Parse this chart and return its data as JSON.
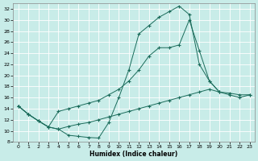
{
  "xlabel": "Humidex (Indice chaleur)",
  "bg_color": "#c8ece8",
  "grid_color": "#ffffff",
  "line_color": "#1a6b5a",
  "xlim": [
    -0.5,
    23.5
  ],
  "ylim": [
    8,
    33
  ],
  "xticks": [
    0,
    1,
    2,
    3,
    4,
    5,
    6,
    7,
    8,
    9,
    10,
    11,
    12,
    13,
    14,
    15,
    16,
    17,
    18,
    19,
    20,
    21,
    22,
    23
  ],
  "yticks": [
    8,
    10,
    12,
    14,
    16,
    18,
    20,
    22,
    24,
    26,
    28,
    30,
    32
  ],
  "line1_x": [
    0,
    1,
    2,
    3,
    4,
    5,
    6,
    7,
    8,
    9,
    10,
    11,
    12,
    13,
    14,
    15,
    16,
    17,
    18,
    19,
    20
  ],
  "line1_y": [
    14.5,
    13.0,
    11.8,
    10.7,
    10.3,
    9.2,
    9.0,
    8.8,
    8.7,
    11.5,
    16.0,
    21.0,
    27.5,
    29.0,
    30.5,
    31.5,
    32.5,
    31.0,
    22.0,
    19.0,
    17.0
  ],
  "line2_x": [
    0,
    1,
    2,
    3,
    4,
    5,
    6,
    7,
    8,
    9,
    10,
    11,
    12,
    13,
    14,
    15,
    16,
    17,
    18,
    19,
    20,
    21,
    22,
    23
  ],
  "line2_y": [
    14.5,
    13.0,
    11.8,
    10.7,
    13.5,
    14.0,
    14.5,
    15.0,
    15.5,
    16.5,
    17.5,
    19.0,
    21.0,
    23.5,
    25.0,
    25.0,
    25.5,
    30.0,
    24.5,
    19.0,
    17.0,
    16.5,
    16.0,
    16.5
  ],
  "line3_x": [
    0,
    1,
    2,
    3,
    4,
    5,
    6,
    7,
    8,
    9,
    10,
    11,
    12,
    13,
    14,
    15,
    16,
    17,
    18,
    19,
    20,
    21,
    22,
    23
  ],
  "line3_y": [
    14.5,
    13.0,
    11.8,
    10.7,
    10.3,
    10.8,
    11.2,
    11.5,
    12.0,
    12.5,
    13.0,
    13.5,
    14.0,
    14.5,
    15.0,
    15.5,
    16.0,
    16.5,
    17.0,
    17.5,
    17.0,
    16.8,
    16.5,
    16.5
  ]
}
